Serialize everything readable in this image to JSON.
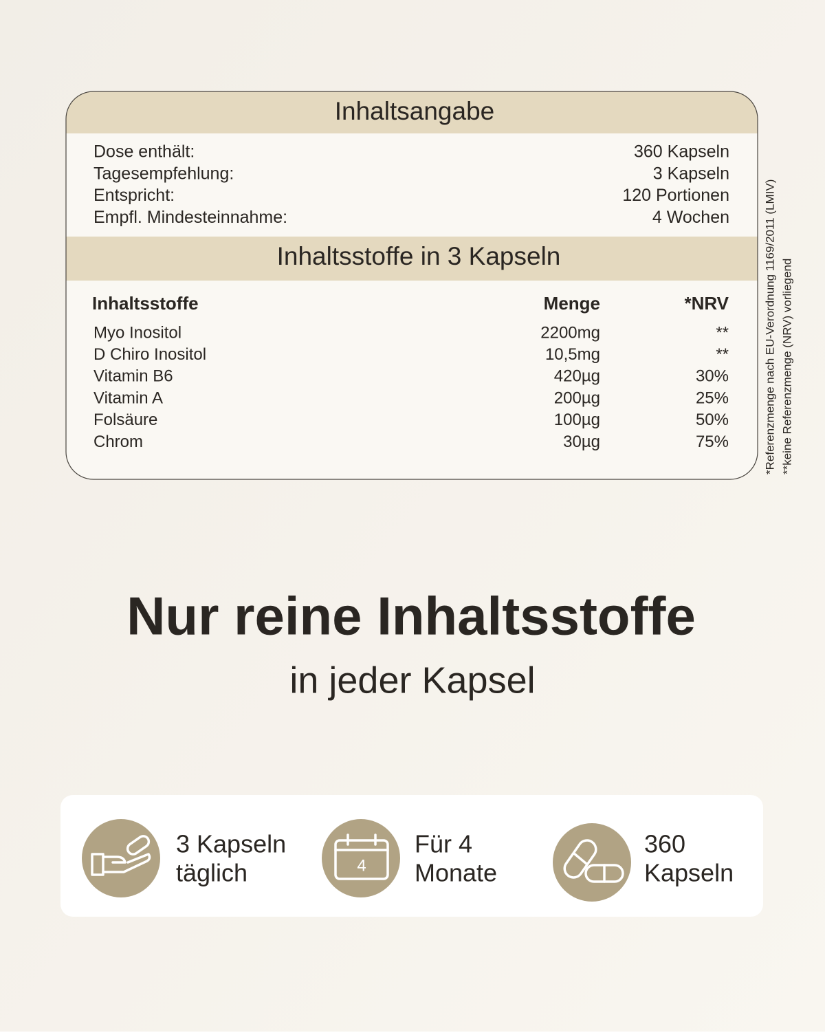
{
  "table_header": "Inhaltsangabe",
  "summary": [
    [
      "Dose enthält:",
      "360 Kapseln"
    ],
    [
      "Tagesempfehlung:",
      "3 Kapseln"
    ],
    [
      "Entspricht:",
      "120 Portionen"
    ],
    [
      "Empfl. Mindesteinnahme:",
      "4 Wochen"
    ]
  ],
  "ingredients_header": "Inhaltsstoffe in 3 Kapseln",
  "columns": [
    "Inhaltsstoffe",
    "Menge",
    "*NRV"
  ],
  "rows": [
    [
      "Myo Inositol",
      "2200mg",
      "**"
    ],
    [
      "D Chiro Inositol",
      "10,5mg",
      "**"
    ],
    [
      "Vitamin B6",
      "420µg",
      "30%"
    ],
    [
      "Vitamin A",
      "200µg",
      "25%"
    ],
    [
      "Folsäure",
      "100µg",
      "50%"
    ],
    [
      "Chrom",
      "30µg",
      "75%"
    ]
  ],
  "footnotes": [
    "*Referenzmenge nach EU-Verordnung 1169/2011 (LMIV)",
    "**keine Referenzmenge (NRV) vorliegend"
  ],
  "headline": "Nur reine Inhaltsstoffe",
  "subheadline": "in jeder Kapsel",
  "features": [
    {
      "lines": [
        "3 Kapseln",
        "täglich"
      ]
    },
    {
      "lines": [
        "Für 4",
        "Monate"
      ],
      "icon_text": "4"
    },
    {
      "lines": [
        "360",
        "Kapseln"
      ]
    }
  ]
}
